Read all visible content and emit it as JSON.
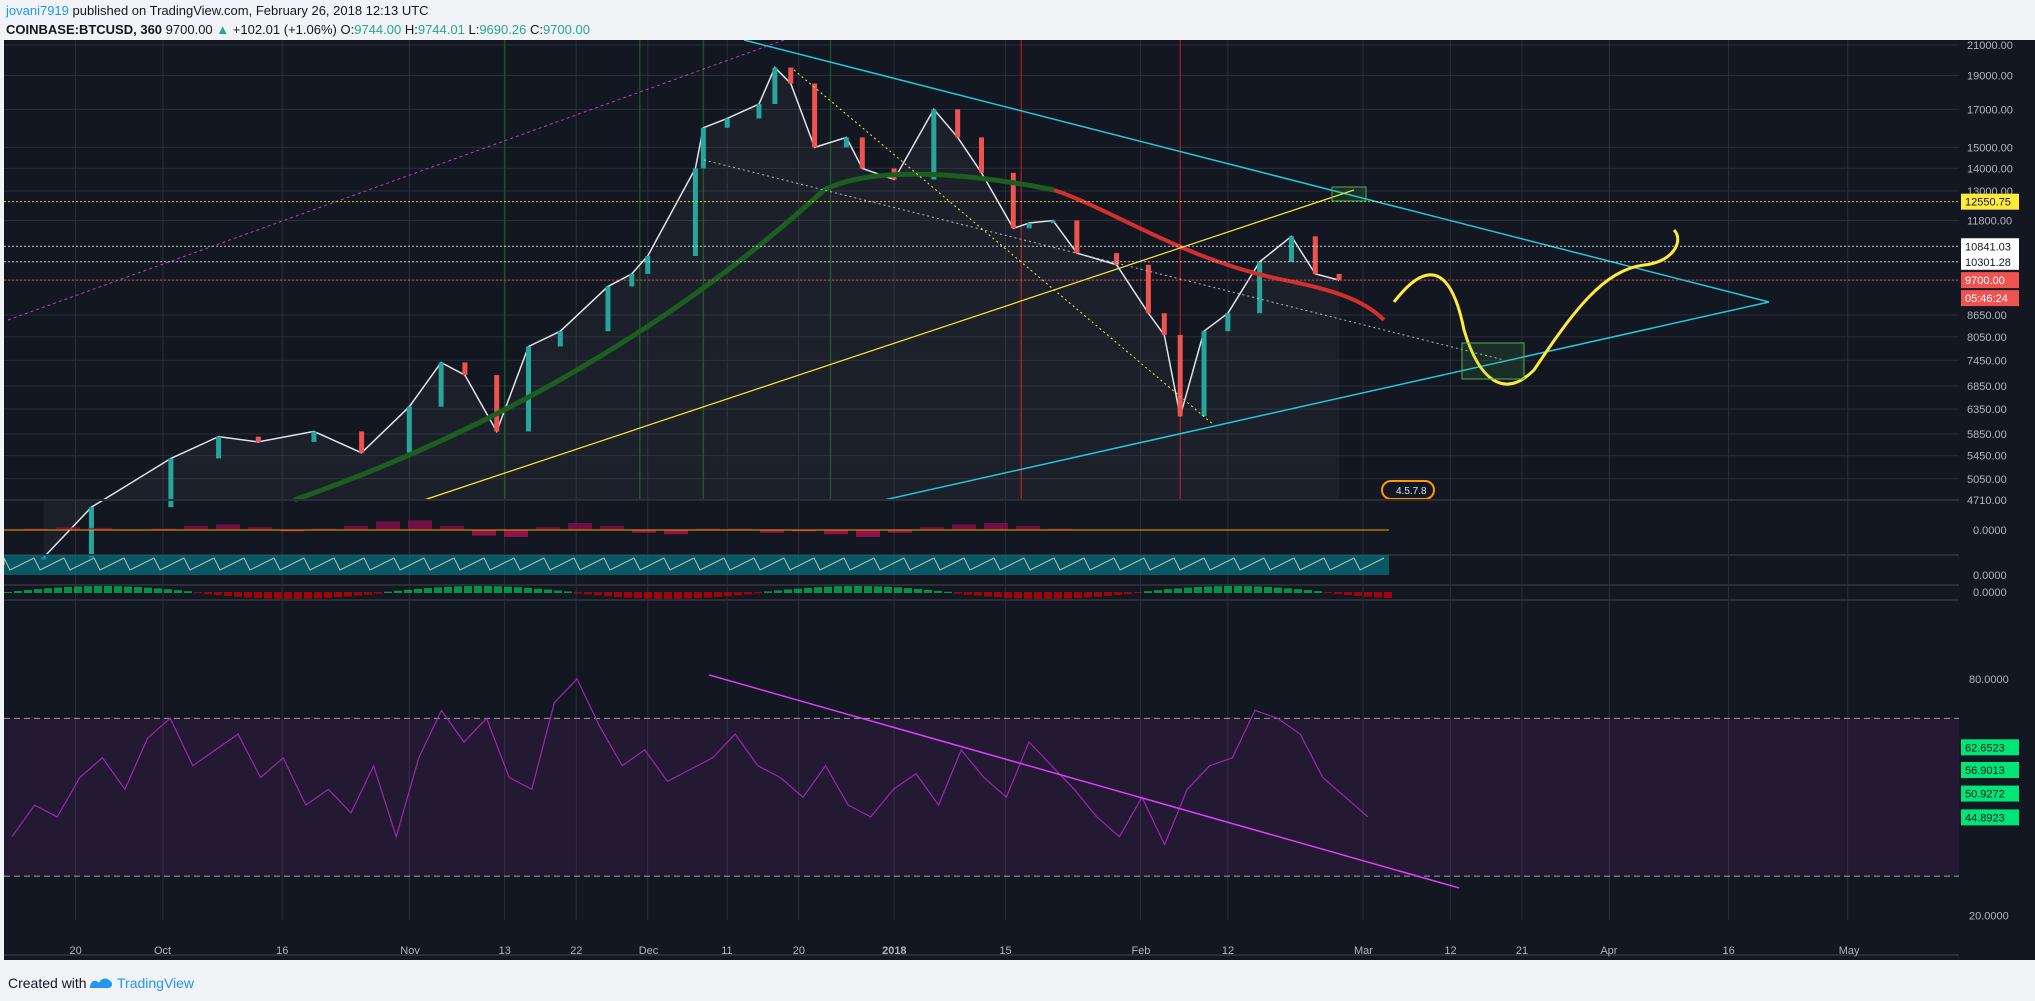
{
  "header": {
    "user": "jovani7919",
    "published": "published on TradingView.com, February 26, 2018 12:13 UTC",
    "symbol": "COINBASE:BTCUSD, 360",
    "last": "9700.00",
    "change": "+102.01 (+1.06%)",
    "o_label": "O:",
    "o_value": "9744.00",
    "h_label": "H:",
    "h_value": "9744.01",
    "l_label": "L:",
    "l_value": "9690.26",
    "c_label": "C:",
    "c_value": "9700.00"
  },
  "footer": {
    "created_with": "Created with",
    "brand": "TradingView"
  },
  "colors": {
    "bg": "#131722",
    "grid": "#2a2e39",
    "up": "#26a69a",
    "down": "#ef5350",
    "trend_cyan": "#26c6da",
    "trend_yellow": "#ffeb3b",
    "ma_green": "#1b5e20",
    "ma_red": "#d32f2f",
    "rsi": "#9c27b0"
  },
  "chart_data": {
    "type": "line",
    "title": "",
    "ylabel": "",
    "scale": "log",
    "ylim": [
      4710,
      21000
    ],
    "y_ticks": [
      "21000.00",
      "19000.00",
      "17000.00",
      "15000.00",
      "14000.00",
      "13000.00",
      "11800.00",
      "10300.00",
      "9700.00",
      "8650.00",
      "8050.00",
      "7450.00",
      "6850.00",
      "6350.00",
      "5850.00",
      "5450.00",
      "5050.00",
      "4710.00"
    ],
    "x_ticks": [
      "20",
      "Oct",
      "16",
      "Nov",
      "13",
      "22",
      "Dec",
      "11",
      "20",
      "2018",
      "15",
      "Feb",
      "12",
      "Mar",
      "12",
      "21",
      "Apr",
      "16",
      "May"
    ],
    "series": [
      {
        "x": [
          "2017-09-16",
          "2017-09-22",
          "2017-10-02",
          "2017-10-08",
          "2017-10-13",
          "2017-10-20",
          "2017-10-26",
          "2017-11-01",
          "2017-11-05",
          "2017-11-08",
          "2017-11-12",
          "2017-11-16",
          "2017-11-20",
          "2017-11-26",
          "2017-11-29",
          "2017-12-01",
          "2017-12-07",
          "2017-12-08",
          "2017-12-11",
          "2017-12-15",
          "2017-12-17",
          "2017-12-19",
          "2017-12-22",
          "2017-12-26",
          "2017-12-28",
          "2018-01-01",
          "2018-01-06",
          "2018-01-09",
          "2018-01-12",
          "2018-01-16",
          "2018-01-18",
          "2018-01-21",
          "2018-01-24",
          "2018-01-29",
          "2018-02-02",
          "2018-02-04",
          "2018-02-06",
          "2018-02-09",
          "2018-02-12",
          "2018-02-16",
          "2018-02-20",
          "2018-02-23",
          "2018-02-26"
        ],
        "y": [
          3900,
          4600,
          5400,
          5800,
          5700,
          5900,
          5500,
          6400,
          7400,
          7100,
          5900,
          7800,
          8200,
          9500,
          9900,
          10500,
          14000,
          16000,
          16500,
          17300,
          19500,
          18500,
          15000,
          15500,
          14000,
          13500,
          17000,
          15500,
          13800,
          11500,
          11700,
          11800,
          10600,
          10200,
          8700,
          8100,
          6200,
          8200,
          8700,
          10300,
          11200,
          9900,
          9700
        ]
      }
    ],
    "price_labels": [
      {
        "value": 12550.75,
        "text": "12550.75"
      },
      {
        "value": 10841.03,
        "text": "10841.03"
      },
      {
        "value": 10301.28,
        "text": "10301.28"
      },
      {
        "value": 9700,
        "text": "9700.00"
      },
      {
        "value": null,
        "text": "05:46:24"
      }
    ],
    "marker_label": "4.5.7.8",
    "macd": {
      "y_ticks": [
        "0.0000"
      ],
      "histogram": [
        0.1,
        0.2,
        0.15,
        -0.05,
        0.1,
        0.3,
        0.4,
        0.2,
        -0.1,
        0.1,
        0.3,
        0.6,
        0.7,
        0.3,
        -0.4,
        -0.5,
        0.2,
        0.5,
        0.3,
        -0.2,
        -0.3,
        0.1,
        0.1,
        -0.2,
        -0.1,
        -0.3,
        -0.5,
        -0.2,
        0.2,
        0.4,
        0.5,
        0.3,
        0.1
      ]
    },
    "osc2": {
      "y_ticks": [
        "0.0000"
      ]
    },
    "osc3": {
      "y_ticks": [
        "0.0000"
      ]
    },
    "rsi": {
      "y_ticks": [
        "80.0000",
        "20.0000"
      ],
      "labels": [
        "62.6523",
        "56.9013",
        "50.9272",
        "44.8923"
      ],
      "values": [
        40,
        48,
        45,
        55,
        60,
        52,
        65,
        70,
        58,
        62,
        66,
        55,
        60,
        48,
        52,
        46,
        58,
        40,
        60,
        72,
        64,
        70,
        55,
        52,
        74,
        80,
        68,
        58,
        62,
        54,
        57,
        60,
        66,
        58,
        55,
        50,
        58,
        48,
        45,
        52,
        56,
        48,
        62,
        55,
        50,
        64,
        58,
        52,
        45,
        40,
        50,
        38,
        52,
        58,
        60,
        72,
        70,
        66,
        55,
        50,
        45
      ]
    }
  }
}
